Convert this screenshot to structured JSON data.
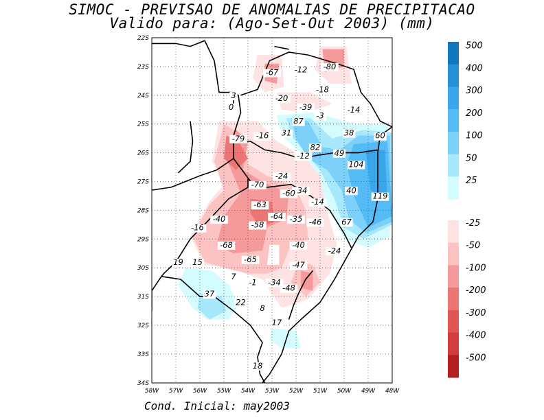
{
  "header": {
    "title_line1": "SIMOC - PREVISAO DE ANOMALIAS DE PRECIPITACAO",
    "title_line2": "Valido para: (Ago-Set-Out 2003) (mm)"
  },
  "footer": {
    "initial_condition": "Cond. Inicial: may2003"
  },
  "axes": {
    "lat_labels": [
      "22S",
      "23S",
      "24S",
      "25S",
      "26S",
      "27S",
      "28S",
      "29S",
      "30S",
      "31S",
      "32S",
      "33S",
      "34S"
    ],
    "lon_labels": [
      "58W",
      "57W",
      "56W",
      "55W",
      "54W",
      "53W",
      "52W",
      "51W",
      "50W",
      "49W",
      "48W"
    ],
    "grid": "dotted"
  },
  "map_values": [
    {
      "text": "-67",
      "lon": -53.0,
      "lat": -23.3
    },
    {
      "text": "-12",
      "lon": -51.8,
      "lat": -23.2
    },
    {
      "text": "-80",
      "lon": -50.6,
      "lat": -23.1
    },
    {
      "text": "-18",
      "lon": -50.9,
      "lat": -23.9
    },
    {
      "text": "3",
      "lon": -54.6,
      "lat": -24.1
    },
    {
      "text": "0",
      "lon": -54.7,
      "lat": -24.5
    },
    {
      "text": "-20",
      "lon": -52.6,
      "lat": -24.2
    },
    {
      "text": "-39",
      "lon": -51.6,
      "lat": -24.5
    },
    {
      "text": "-3",
      "lon": -51.0,
      "lat": -24.8
    },
    {
      "text": "-14",
      "lon": -49.6,
      "lat": -24.6
    },
    {
      "text": "87",
      "lon": -51.9,
      "lat": -25.0
    },
    {
      "text": "31",
      "lon": -52.4,
      "lat": -25.4
    },
    {
      "text": "38",
      "lon": -49.8,
      "lat": -25.4
    },
    {
      "text": "60",
      "lon": -48.5,
      "lat": -25.5
    },
    {
      "text": "-79",
      "lon": -54.4,
      "lat": -25.6
    },
    {
      "text": "-16",
      "lon": -53.4,
      "lat": -25.5
    },
    {
      "text": "82",
      "lon": -51.2,
      "lat": -25.9
    },
    {
      "text": "49",
      "lon": -50.2,
      "lat": -26.1
    },
    {
      "text": "-12",
      "lon": -51.7,
      "lat": -26.2
    },
    {
      "text": "104",
      "lon": -49.5,
      "lat": -26.5
    },
    {
      "text": "-24",
      "lon": -52.6,
      "lat": -26.9
    },
    {
      "text": "-70",
      "lon": -53.6,
      "lat": -27.2
    },
    {
      "text": "-34",
      "lon": -51.8,
      "lat": -27.4
    },
    {
      "text": "-60",
      "lon": -52.3,
      "lat": -27.5
    },
    {
      "text": "40",
      "lon": -49.7,
      "lat": -27.4
    },
    {
      "text": "119",
      "lon": -48.5,
      "lat": -27.6
    },
    {
      "text": "-14",
      "lon": -51.1,
      "lat": -27.8
    },
    {
      "text": "-63",
      "lon": -53.5,
      "lat": -27.9
    },
    {
      "text": "-40",
      "lon": -55.2,
      "lat": -28.4
    },
    {
      "text": "-64",
      "lon": -52.8,
      "lat": -28.3
    },
    {
      "text": "-35",
      "lon": -52.0,
      "lat": -28.4
    },
    {
      "text": "-46",
      "lon": -51.2,
      "lat": -28.5
    },
    {
      "text": "67",
      "lon": -49.9,
      "lat": -28.5
    },
    {
      "text": "-58",
      "lon": -53.6,
      "lat": -28.6
    },
    {
      "text": "-16",
      "lon": -56.1,
      "lat": -28.7
    },
    {
      "text": "-68",
      "lon": -54.9,
      "lat": -29.3
    },
    {
      "text": "-40",
      "lon": -51.9,
      "lat": -29.3
    },
    {
      "text": "-24",
      "lon": -50.4,
      "lat": -29.5
    },
    {
      "text": "-65",
      "lon": -53.9,
      "lat": -29.8
    },
    {
      "text": "19",
      "lon": -56.9,
      "lat": -29.9
    },
    {
      "text": "15",
      "lon": -56.1,
      "lat": -29.9
    },
    {
      "text": "-47",
      "lon": -51.9,
      "lat": -30.0
    },
    {
      "text": "7",
      "lon": -54.6,
      "lat": -30.4
    },
    {
      "text": "-1",
      "lon": -53.8,
      "lat": -30.6
    },
    {
      "text": "-34",
      "lon": -52.9,
      "lat": -30.6
    },
    {
      "text": "-48",
      "lon": -52.3,
      "lat": -30.8
    },
    {
      "text": "37",
      "lon": -55.6,
      "lat": -31.0
    },
    {
      "text": "22",
      "lon": -54.3,
      "lat": -31.3
    },
    {
      "text": "8",
      "lon": -53.4,
      "lat": -31.5
    },
    {
      "text": "17",
      "lon": -52.8,
      "lat": -32.0
    },
    {
      "text": "18",
      "lon": -53.6,
      "lat": -33.5
    }
  ],
  "legend": {
    "positive_levels": [
      "500",
      "400",
      "300",
      "200",
      "100",
      "50",
      "25"
    ],
    "negative_levels": [
      "-25",
      "-50",
      "-100",
      "-200",
      "-300",
      "-400",
      "-500"
    ],
    "positive_colors": [
      "#1077c0",
      "#2590d6",
      "#3ba6ea",
      "#55bbf5",
      "#7cd0fa",
      "#a8e8fc",
      "#d4fbfe"
    ],
    "negative_colors": [
      "#fde3e3",
      "#fcc3c3",
      "#f59a9a",
      "#ec7676",
      "#e25555",
      "#d23c3c",
      "#b42020"
    ]
  },
  "colors": {
    "light_cyan": "#d4fbfe",
    "cyan": "#a8e8fc",
    "sky": "#7cd0fa",
    "blue": "#55bbf5",
    "deep_blue": "#3ba6ea",
    "pale_pink": "#fde3e3",
    "pink": "#fcc3c3",
    "salmon": "#f59a9a",
    "red": "#ec7676"
  }
}
